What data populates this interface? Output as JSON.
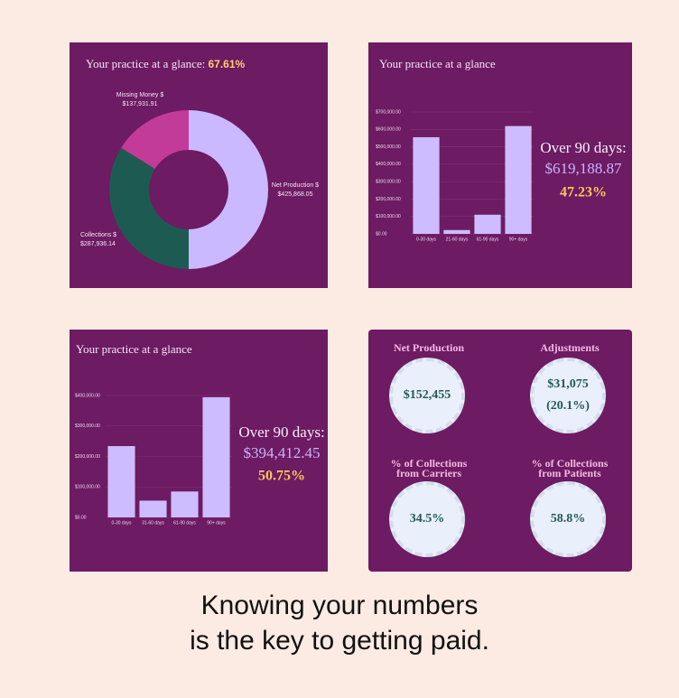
{
  "chart_data": [
    {
      "type": "donut",
      "title": "Your practice at a glance:",
      "title_highlight": "67.61%",
      "categories": [
        "Net Production $",
        "Collections $",
        "Missing Money $"
      ],
      "values": [
        425868.05,
        287936.14,
        137931.91
      ],
      "value_labels": [
        "$425,868.05",
        "$287,936.14",
        "$137,931.91"
      ],
      "colors": [
        "#cbb9ff",
        "#1d5b52",
        "#c23b98"
      ]
    },
    {
      "type": "bar",
      "title": "Your practice at a glance",
      "categories": [
        "0-30 days",
        "21-60 days",
        "61-90 days",
        "90+ days"
      ],
      "values": [
        555000,
        22000,
        110000,
        619188.87
      ],
      "color": "#cdbcff",
      "ylim": [
        0,
        700000
      ],
      "yticks": [
        {
          "value": 0,
          "label": "$0.00"
        },
        {
          "value": 100000,
          "label": "$100,000.00"
        },
        {
          "value": 200000,
          "label": "$200,000.00"
        },
        {
          "value": 300000,
          "label": "$300,000.00"
        },
        {
          "value": 400000,
          "label": "$400,000.00"
        },
        {
          "value": 500000,
          "label": "$500,000.00"
        },
        {
          "value": 600000,
          "label": "$600,000.00"
        },
        {
          "value": 700000,
          "label": "$700,000.00"
        }
      ],
      "grid": true,
      "callout": {
        "label": "Over 90 days:",
        "amount": "$619,188.87",
        "percent": "47.23%"
      }
    },
    {
      "type": "bar",
      "title": "Your practice at a glance",
      "categories": [
        "0-30 days",
        "31-60 days",
        "61-90 days",
        "90+ days"
      ],
      "values": [
        234000,
        55000,
        85000,
        394412.45
      ],
      "color": "#cdbcff",
      "ylim": [
        0,
        400000
      ],
      "yticks": [
        {
          "value": 0,
          "label": "$0.00"
        },
        {
          "value": 100000,
          "label": "$100,000.00"
        },
        {
          "value": 200000,
          "label": "$200,000.00"
        },
        {
          "value": 300000,
          "label": "$300,000.00"
        },
        {
          "value": 400000,
          "label": "$400,000.00"
        }
      ],
      "grid": true,
      "callout": {
        "label": "Over 90 days:",
        "amount": "$394,412.45",
        "percent": "50.75%"
      }
    }
  ],
  "kpis": [
    {
      "label": "Net Production",
      "value": "$152,455"
    },
    {
      "label": "Adjustments",
      "value": "$31,075",
      "secondary": "(20.1%)"
    },
    {
      "label": "% of Collections from Carriers",
      "value": "34.5%"
    },
    {
      "label": "% of Collections from Patients",
      "value": "58.8%"
    }
  ],
  "caption": [
    "Knowing your numbers",
    "is the key to getting paid."
  ]
}
